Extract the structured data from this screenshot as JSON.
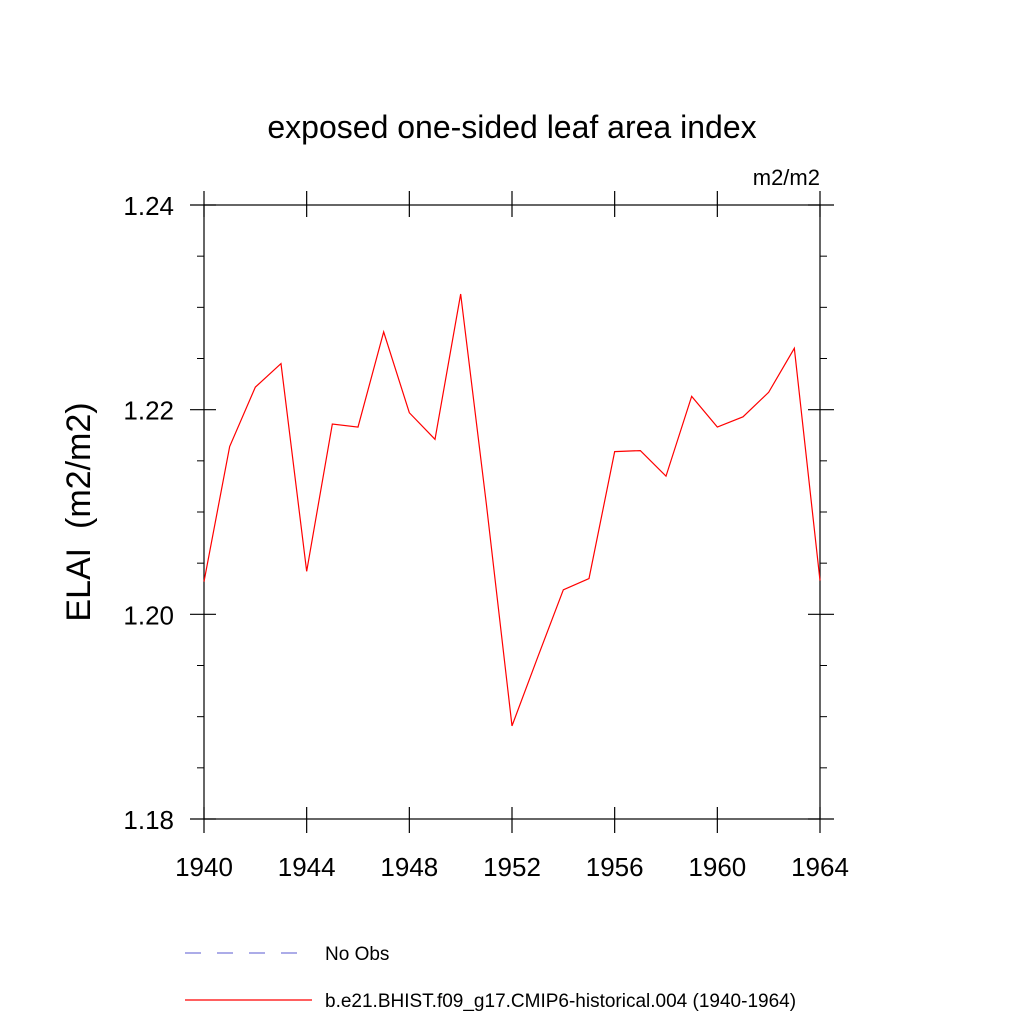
{
  "chart_data": {
    "type": "line",
    "title": "exposed one-sided leaf area index",
    "units_label": "m2/m2",
    "ylabel": "ELAI  (m2/m2)",
    "xlabel": "",
    "xlim": [
      1940,
      1964
    ],
    "ylim": [
      1.18,
      1.24
    ],
    "x_ticks": [
      1940,
      1944,
      1948,
      1952,
      1956,
      1960,
      1964
    ],
    "x_tick_labels": [
      "1940",
      "1944",
      "1948",
      "1952",
      "1956",
      "1960",
      "1964"
    ],
    "y_ticks": [
      1.18,
      1.2,
      1.22,
      1.24
    ],
    "y_tick_labels": [
      "1.18",
      "1.20",
      "1.22",
      "1.24"
    ],
    "y_minor_step": 0.005,
    "x_minor_step": 1,
    "grid": false,
    "legend_position": "bottom",
    "series": [
      {
        "name": "No Obs",
        "color": "#7b7bd9",
        "style": "dashed",
        "x": [],
        "y": []
      },
      {
        "name": "b.e21.BHIST.f09_g17.CMIP6-historical.004 (1940-1964)",
        "color": "#ff0000",
        "style": "solid",
        "x": [
          1940,
          1941,
          1942,
          1943,
          1944,
          1945,
          1946,
          1947,
          1948,
          1949,
          1950,
          1951,
          1952,
          1953,
          1954,
          1955,
          1956,
          1957,
          1958,
          1959,
          1960,
          1961,
          1962,
          1963,
          1964
        ],
        "y": [
          1.2032,
          1.2164,
          1.2222,
          1.2245,
          1.2042,
          1.2186,
          1.2183,
          1.2276,
          1.2197,
          1.2171,
          1.2313,
          1.2108,
          1.1891,
          1.1958,
          1.2024,
          1.2035,
          1.2159,
          1.216,
          1.2135,
          1.2213,
          1.2183,
          1.2193,
          1.2217,
          1.226,
          1.2033
        ]
      }
    ]
  }
}
